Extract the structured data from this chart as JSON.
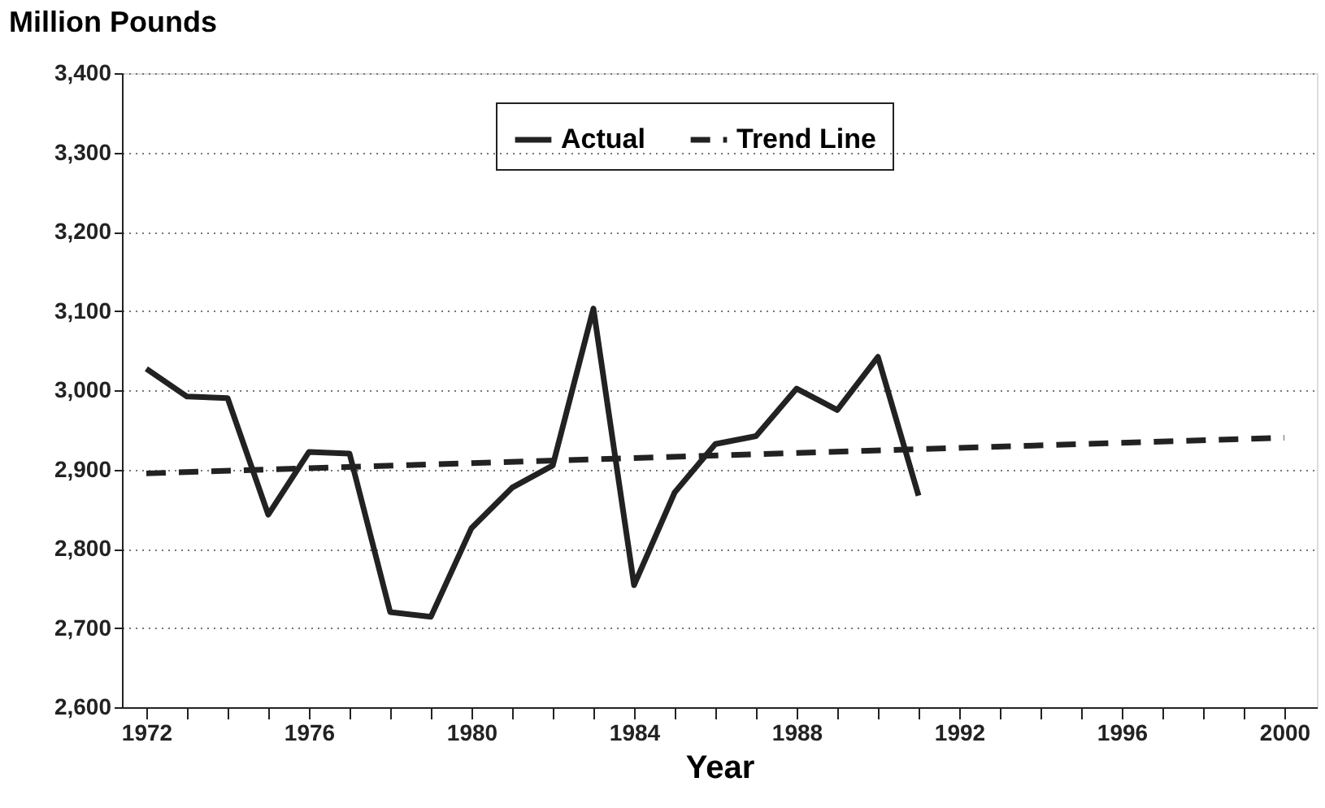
{
  "chart_data": {
    "type": "line",
    "ylabel": "Million Pounds",
    "xlabel": "Year",
    "x": [
      1972,
      1973,
      1974,
      1975,
      1976,
      1977,
      1978,
      1979,
      1980,
      1981,
      1982,
      1983,
      1984,
      1985,
      1986,
      1987,
      1988,
      1989,
      1990,
      1991
    ],
    "series": [
      {
        "name": "Actual",
        "color": "#222222",
        "line_style": "solid",
        "values": [
          3027,
          2992,
          2990,
          2843,
          2922,
          2920,
          2720,
          2714,
          2826,
          2877,
          2905,
          3103,
          2754,
          2871,
          2932,
          2942,
          3002,
          2975,
          3042,
          2867
        ]
      },
      {
        "name": "Trend Line",
        "color": "#222222",
        "line_style": "dashed",
        "x": [
          1972,
          2000
        ],
        "values": [
          2895,
          2940
        ]
      }
    ],
    "xlim": [
      1971.4,
      2000.8
    ],
    "ylim": [
      2600,
      3400
    ],
    "xticks": [
      1972,
      {
        "value": 1973,
        "label": null
      },
      {
        "value": 1974,
        "label": null
      },
      {
        "value": 1975,
        "label": null
      },
      1976,
      {
        "value": 1977,
        "label": null
      },
      {
        "value": 1978,
        "label": null
      },
      {
        "value": 1979,
        "label": null
      },
      1980,
      {
        "value": 1981,
        "label": null
      },
      {
        "value": 1982,
        "label": null
      },
      {
        "value": 1983,
        "label": null
      },
      1984,
      {
        "value": 1985,
        "label": null
      },
      {
        "value": 1986,
        "label": null
      },
      {
        "value": 1987,
        "label": null
      },
      1988,
      {
        "value": 1989,
        "label": null
      },
      {
        "value": 1990,
        "label": null
      },
      {
        "value": 1991,
        "label": null
      },
      1992,
      {
        "value": 1993,
        "label": null
      },
      {
        "value": 1994,
        "label": null
      },
      {
        "value": 1995,
        "label": null
      },
      1996,
      {
        "value": 1997,
        "label": null
      },
      {
        "value": 1998,
        "label": null
      },
      {
        "value": 1999,
        "label": null
      },
      2000
    ],
    "yticks": [
      {
        "value": 2600,
        "label": "2,600"
      },
      {
        "value": 2700,
        "label": "2,700"
      },
      {
        "value": 2800,
        "label": "2,800"
      },
      {
        "value": 2900,
        "label": "2,900"
      },
      {
        "value": 3000,
        "label": "3,000"
      },
      {
        "value": 3100,
        "label": "3,100"
      },
      {
        "value": 3200,
        "label": "3,200"
      },
      {
        "value": 3300,
        "label": "3,300"
      },
      {
        "value": 3400,
        "label": "3,400"
      }
    ],
    "grid": "y",
    "legend": "top",
    "marker": "none"
  }
}
